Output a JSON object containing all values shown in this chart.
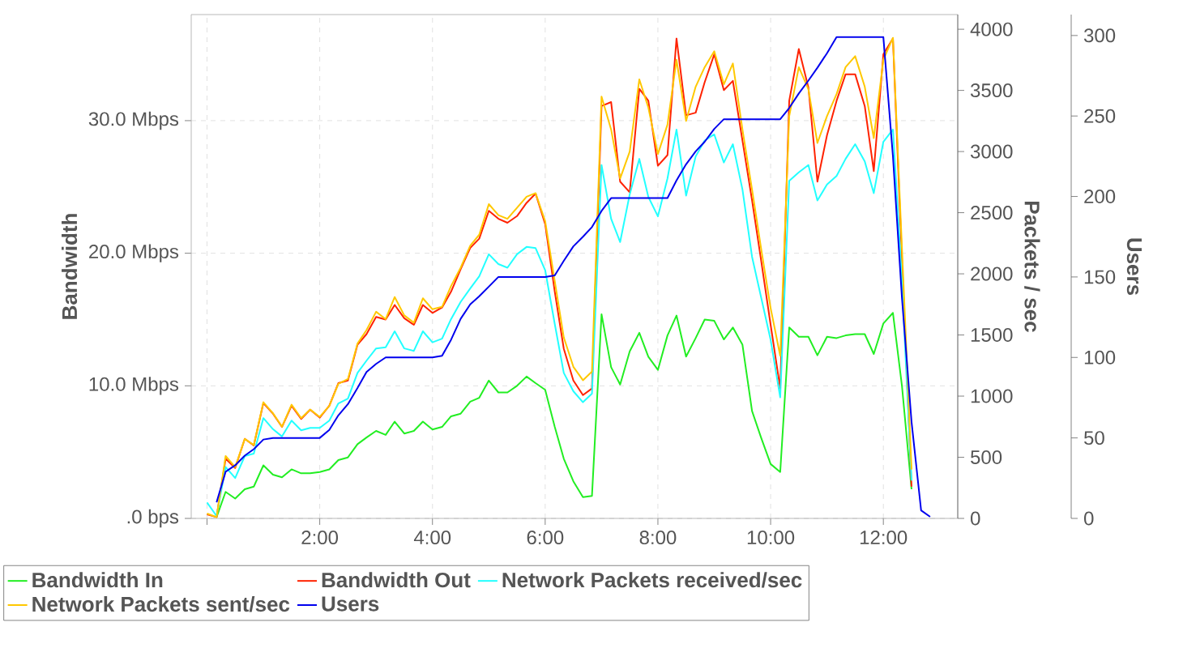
{
  "chart_data": {
    "type": "line",
    "ylabel": "Bandwidth",
    "y2label": "Packets / sec",
    "y3label": "Users",
    "x": [
      0,
      0.17,
      0.33,
      0.5,
      0.67,
      0.83,
      1,
      1.17,
      1.33,
      1.5,
      1.67,
      1.83,
      2,
      2.17,
      2.33,
      2.5,
      2.67,
      2.83,
      3,
      3.17,
      3.33,
      3.5,
      3.67,
      3.83,
      4,
      4.17,
      4.33,
      4.5,
      4.67,
      4.83,
      5,
      5.17,
      5.33,
      5.5,
      5.67,
      5.83,
      6,
      6.17,
      6.33,
      6.5,
      6.67,
      6.83,
      7,
      7.17,
      7.33,
      7.5,
      7.67,
      7.83,
      8,
      8.17,
      8.33,
      8.5,
      8.67,
      8.83,
      9,
      9.17,
      9.33,
      9.5,
      9.67,
      9.83,
      10,
      10.17,
      10.33,
      10.5,
      10.67,
      10.83,
      11,
      11.17,
      11.33,
      11.5,
      11.67,
      11.83,
      12,
      12.17,
      12.33,
      12.5,
      12.67,
      12.83
    ],
    "xlim": [
      -0.28,
      13.32
    ],
    "xticks": [
      {
        "value": 0,
        "label": null
      },
      {
        "value": 2,
        "label": "2:00"
      },
      {
        "value": 4,
        "label": "4:00"
      },
      {
        "value": 6,
        "label": "6:00"
      },
      {
        "value": 8,
        "label": "8:00"
      },
      {
        "value": 10,
        "label": "10:00"
      },
      {
        "value": 12,
        "label": "12:00"
      }
    ],
    "ylim": [
      0,
      38
    ],
    "yticks": [
      {
        "value": 0,
        "label": ".0 bps"
      },
      {
        "value": 10,
        "label": "10.0 Mbps"
      },
      {
        "value": 20,
        "label": "20.0 Mbps"
      },
      {
        "value": 30,
        "label": "30.0 Mbps"
      }
    ],
    "y2lim": [
      0,
      4120
    ],
    "y2ticks": [
      0,
      500,
      1000,
      1500,
      2000,
      2500,
      3000,
      3500,
      4000
    ],
    "y3lim": [
      0,
      313
    ],
    "y3ticks": [
      0,
      50,
      100,
      150,
      200,
      250,
      300
    ],
    "grid": true,
    "legend": "bottom",
    "series": [
      {
        "name": "Bandwidth In",
        "color": "#22ee22",
        "values": [
          null,
          0.1,
          2.0,
          1.5,
          2.2,
          2.4,
          4.0,
          3.3,
          3.1,
          3.7,
          3.4,
          3.4,
          3.5,
          3.7,
          4.4,
          4.6,
          5.6,
          6.1,
          6.6,
          6.3,
          7.3,
          6.4,
          6.6,
          7.3,
          6.7,
          6.9,
          7.7,
          7.9,
          8.8,
          9.1,
          10.4,
          9.5,
          9.5,
          10.0,
          10.7,
          10.2,
          9.7,
          6.9,
          4.5,
          2.8,
          1.6,
          1.7,
          15.4,
          11.4,
          10.1,
          12.6,
          14.0,
          12.2,
          11.2,
          13.8,
          15.3,
          12.2,
          13.6,
          15.0,
          14.9,
          13.5,
          14.4,
          13.1,
          8.1,
          6.1,
          4.1,
          3.5,
          14.4,
          13.7,
          13.7,
          12.3,
          13.7,
          13.6,
          13.8,
          13.9,
          13.9,
          12.4,
          14.7,
          15.5,
          10.0,
          2.2,
          null,
          null
        ]
      },
      {
        "name": "Bandwidth Out",
        "color": "#ff2200",
        "values": [
          0.3,
          0.1,
          4.5,
          3.8,
          6.0,
          5.5,
          8.7,
          7.9,
          6.9,
          8.5,
          7.5,
          8.2,
          7.6,
          8.5,
          10.2,
          10.4,
          13.1,
          13.9,
          15.2,
          15.0,
          16.1,
          15.1,
          14.6,
          16.1,
          15.5,
          15.9,
          17.1,
          18.8,
          20.4,
          21.1,
          23.2,
          22.6,
          22.3,
          22.8,
          23.8,
          24.5,
          22.2,
          17.1,
          12.8,
          10.4,
          9.3,
          9.8,
          31.1,
          31.4,
          25.4,
          24.6,
          32.4,
          31.5,
          26.6,
          27.4,
          36.2,
          30.4,
          30.6,
          32.9,
          35.0,
          32.3,
          33.0,
          28.5,
          24.0,
          19.5,
          14.6,
          9.8,
          31.5,
          35.4,
          32.5,
          25.4,
          28.9,
          31.5,
          33.5,
          33.5,
          31.1,
          26.2,
          35.0,
          36.2,
          19.5,
          2.4,
          null,
          null
        ]
      },
      {
        "name": "Network Packets received/sec",
        "color": "#22ffff",
        "axis": "y2",
        "values": [
          130,
          20,
          420,
          330,
          510,
          530,
          820,
          730,
          670,
          800,
          720,
          740,
          740,
          800,
          940,
          980,
          1190,
          1290,
          1390,
          1400,
          1530,
          1390,
          1370,
          1530,
          1440,
          1470,
          1630,
          1770,
          1880,
          1980,
          2160,
          2080,
          2050,
          2160,
          2220,
          2210,
          2030,
          1590,
          1190,
          1040,
          950,
          1020,
          2890,
          2450,
          2260,
          2650,
          2940,
          2630,
          2470,
          2780,
          3180,
          2640,
          2960,
          3090,
          3140,
          2910,
          3060,
          2690,
          2140,
          1810,
          1460,
          990,
          2760,
          2830,
          2890,
          2600,
          2730,
          2800,
          2940,
          3060,
          2920,
          2660,
          3080,
          3180,
          1940,
          310,
          null,
          null
        ]
      },
      {
        "name": "Network Packets sent/sec",
        "color": "#ffc800",
        "axis": "y2",
        "values": [
          40,
          10,
          510,
          420,
          650,
          600,
          950,
          860,
          750,
          930,
          820,
          890,
          830,
          920,
          1100,
          1140,
          1430,
          1540,
          1690,
          1630,
          1810,
          1660,
          1600,
          1800,
          1710,
          1730,
          1900,
          2050,
          2230,
          2320,
          2570,
          2480,
          2450,
          2540,
          2630,
          2660,
          2430,
          1940,
          1480,
          1240,
          1130,
          1200,
          3450,
          3180,
          2780,
          3000,
          3590,
          3360,
          2980,
          3220,
          3750,
          3250,
          3530,
          3690,
          3820,
          3550,
          3720,
          3180,
          2690,
          2210,
          1720,
          1330,
          3290,
          3690,
          3510,
          3070,
          3290,
          3470,
          3690,
          3780,
          3530,
          3110,
          3750,
          3930,
          2210,
          400,
          null,
          null
        ]
      },
      {
        "name": "Users",
        "color": "#0000ee",
        "axis": "y3",
        "values": [
          null,
          10,
          29,
          33,
          39,
          43,
          49,
          50,
          50,
          50,
          50,
          50,
          50,
          55,
          64,
          71,
          81,
          91,
          96,
          100,
          100,
          100,
          100,
          100,
          100,
          101,
          111,
          124,
          133,
          138,
          144,
          150,
          150,
          150,
          150,
          150,
          150,
          151,
          160,
          169,
          175,
          181,
          191,
          199,
          199,
          199,
          199,
          199,
          199,
          199,
          210,
          220,
          228,
          234,
          242,
          248,
          248,
          248,
          248,
          248,
          248,
          248,
          255,
          264,
          272,
          280,
          289,
          299,
          299,
          299,
          299,
          299,
          299,
          225,
          137,
          60,
          5,
          1
        ]
      }
    ]
  }
}
